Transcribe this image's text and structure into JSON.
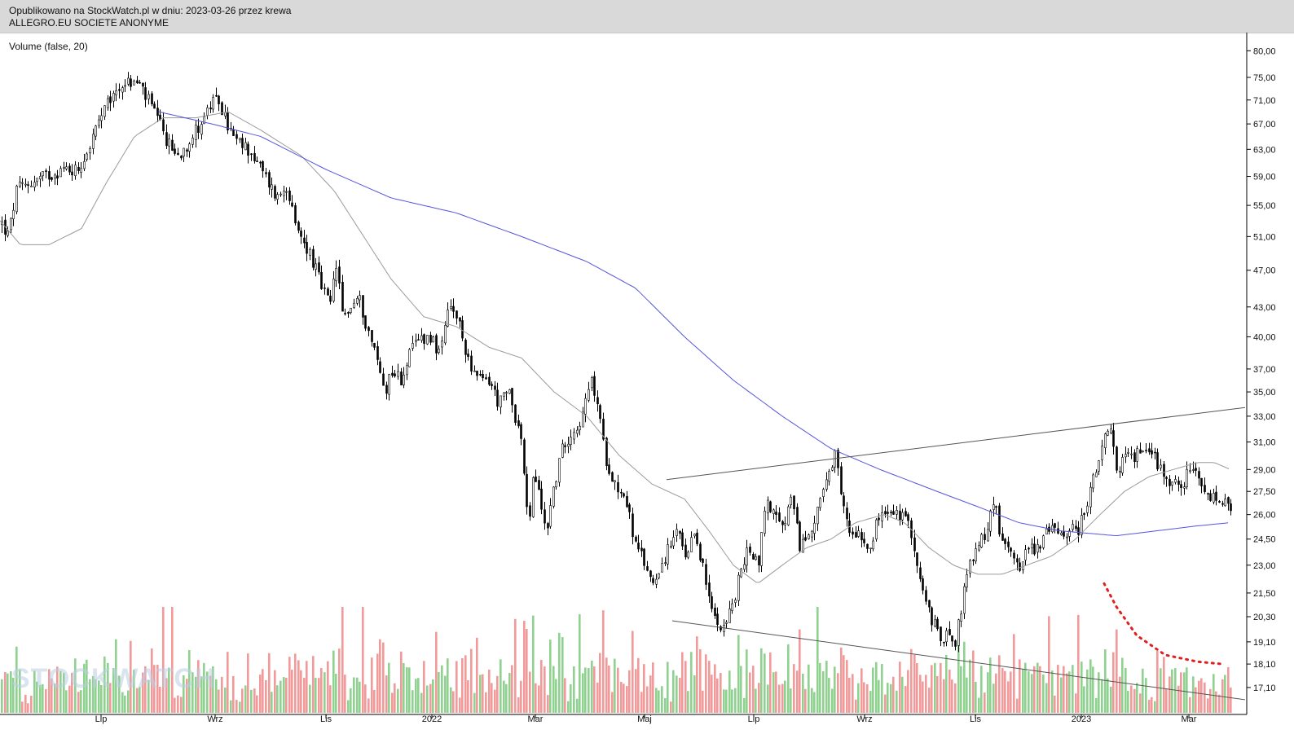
{
  "header": {
    "published": "Opublikowano na StockWatch.pl w dniu: 2023-03-26 przez krewa",
    "instrument": "ALLEGRO.EU SOCIETE ANONYME"
  },
  "indicator_label": "Volume (false, 20)",
  "watermark": "STOCKWATCH",
  "colors": {
    "candle": "#000000",
    "ma_short": "#9a9a9a",
    "ma_long": "#5555dd",
    "volume_up": "#8fd18f",
    "volume_down": "#f29a9a",
    "trendline": "#555555",
    "annotation": "#e02020"
  },
  "chart_data": {
    "type": "candlestick",
    "title": "ALLEGRO.EU SOCIETE ANONYME",
    "y_scale": "log",
    "ylim": [
      16.5,
      81
    ],
    "y_ticks": [
      "80,00",
      "75,00",
      "71,00",
      "67,00",
      "63,00",
      "59,00",
      "55,00",
      "51,00",
      "47,00",
      "43,00",
      "40,00",
      "37,00",
      "35,00",
      "33,00",
      "31,00",
      "29,00",
      "27,50",
      "26,00",
      "24,50",
      "23,00",
      "21,50",
      "20,30",
      "19,10",
      "18,10",
      "17,10"
    ],
    "x_ticks": [
      "Lip",
      "Wrz",
      "Lis",
      "2022",
      "Mar",
      "Maj",
      "Lip",
      "Wrz",
      "Lis",
      "2023",
      "Mar"
    ],
    "price_anchors": [
      [
        0,
        53
      ],
      [
        10,
        51
      ],
      [
        20,
        57
      ],
      [
        35,
        58
      ],
      [
        55,
        59
      ],
      [
        75,
        60
      ],
      [
        95,
        60
      ],
      [
        108,
        63
      ],
      [
        120,
        67
      ],
      [
        135,
        71
      ],
      [
        150,
        74
      ],
      [
        170,
        74
      ],
      [
        185,
        70
      ],
      [
        195,
        67
      ],
      [
        205,
        64
      ],
      [
        218,
        62
      ],
      [
        230,
        64
      ],
      [
        245,
        67
      ],
      [
        258,
        70
      ],
      [
        268,
        71
      ],
      [
        278,
        67
      ],
      [
        290,
        64
      ],
      [
        305,
        63
      ],
      [
        320,
        60
      ],
      [
        340,
        56
      ],
      [
        352,
        58
      ],
      [
        362,
        52
      ],
      [
        380,
        49
      ],
      [
        395,
        45
      ],
      [
        405,
        43
      ],
      [
        412,
        48
      ],
      [
        420,
        42
      ],
      [
        440,
        44
      ],
      [
        450,
        41
      ],
      [
        462,
        38
      ],
      [
        472,
        35
      ],
      [
        480,
        37
      ],
      [
        492,
        36
      ],
      [
        500,
        38
      ],
      [
        515,
        40
      ],
      [
        530,
        40
      ],
      [
        540,
        38
      ],
      [
        550,
        43
      ],
      [
        560,
        42
      ],
      [
        570,
        39
      ],
      [
        585,
        36
      ],
      [
        600,
        36
      ],
      [
        612,
        34
      ],
      [
        625,
        35
      ],
      [
        640,
        31
      ],
      [
        648,
        25
      ],
      [
        655,
        29
      ],
      [
        662,
        27
      ],
      [
        670,
        25
      ],
      [
        680,
        28
      ],
      [
        692,
        31
      ],
      [
        705,
        32
      ],
      [
        715,
        33
      ],
      [
        725,
        36
      ],
      [
        733,
        34
      ],
      [
        742,
        30
      ],
      [
        755,
        28
      ],
      [
        768,
        27
      ],
      [
        780,
        24
      ],
      [
        792,
        23
      ],
      [
        800,
        22
      ],
      [
        810,
        23
      ],
      [
        822,
        24
      ],
      [
        832,
        25
      ],
      [
        842,
        23
      ],
      [
        852,
        25
      ],
      [
        862,
        23
      ],
      [
        870,
        21
      ],
      [
        880,
        20
      ],
      [
        890,
        20
      ],
      [
        900,
        21
      ],
      [
        910,
        23
      ],
      [
        920,
        24
      ],
      [
        930,
        23
      ],
      [
        940,
        27
      ],
      [
        950,
        26
      ],
      [
        960,
        25
      ],
      [
        970,
        27
      ],
      [
        982,
        24
      ],
      [
        995,
        25
      ],
      [
        1005,
        27
      ],
      [
        1015,
        28
      ],
      [
        1025,
        30
      ],
      [
        1032,
        27
      ],
      [
        1042,
        25
      ],
      [
        1055,
        25
      ],
      [
        1065,
        24
      ],
      [
        1080,
        26
      ],
      [
        1092,
        26
      ],
      [
        1105,
        26
      ],
      [
        1118,
        25
      ],
      [
        1125,
        23
      ],
      [
        1135,
        21
      ],
      [
        1145,
        20
      ],
      [
        1155,
        19
      ],
      [
        1162,
        20
      ],
      [
        1172,
        19
      ],
      [
        1180,
        21
      ],
      [
        1190,
        23
      ],
      [
        1200,
        24
      ],
      [
        1210,
        25
      ],
      [
        1220,
        27
      ],
      [
        1230,
        24
      ],
      [
        1240,
        24
      ],
      [
        1252,
        23
      ],
      [
        1262,
        24
      ],
      [
        1272,
        24
      ],
      [
        1285,
        25
      ],
      [
        1298,
        25
      ],
      [
        1310,
        25
      ],
      [
        1322,
        25
      ],
      [
        1335,
        27
      ],
      [
        1345,
        29
      ],
      [
        1355,
        31
      ],
      [
        1362,
        32
      ],
      [
        1370,
        29
      ],
      [
        1382,
        30
      ],
      [
        1395,
        30
      ],
      [
        1405,
        31
      ],
      [
        1415,
        30
      ],
      [
        1425,
        29
      ],
      [
        1438,
        28
      ],
      [
        1450,
        28
      ],
      [
        1462,
        29
      ],
      [
        1472,
        28
      ],
      [
        1482,
        27
      ],
      [
        1495,
        27
      ],
      [
        1505,
        26.5
      ],
      [
        1512,
        26
      ]
    ],
    "series": [
      {
        "kind": "moving_average_short",
        "anchors": [
          [
            0,
            53
          ],
          [
            25,
            50
          ],
          [
            60,
            50
          ],
          [
            100,
            52
          ],
          [
            130,
            58
          ],
          [
            165,
            65
          ],
          [
            200,
            68
          ],
          [
            240,
            68
          ],
          [
            280,
            69
          ],
          [
            320,
            66
          ],
          [
            370,
            62
          ],
          [
            410,
            57
          ],
          [
            440,
            52
          ],
          [
            480,
            46
          ],
          [
            520,
            42
          ],
          [
            560,
            41
          ],
          [
            600,
            39
          ],
          [
            640,
            38
          ],
          [
            680,
            35
          ],
          [
            720,
            33
          ],
          [
            760,
            30
          ],
          [
            800,
            28
          ],
          [
            840,
            27
          ],
          [
            870,
            25
          ],
          [
            900,
            23
          ],
          [
            930,
            22
          ],
          [
            960,
            23
          ],
          [
            990,
            24
          ],
          [
            1020,
            24.5
          ],
          [
            1050,
            25.5
          ],
          [
            1085,
            26
          ],
          [
            1110,
            25.5
          ],
          [
            1140,
            24
          ],
          [
            1170,
            23
          ],
          [
            1200,
            22.5
          ],
          [
            1230,
            22.5
          ],
          [
            1260,
            23
          ],
          [
            1290,
            23.5
          ],
          [
            1320,
            24.5
          ],
          [
            1350,
            26
          ],
          [
            1380,
            27.5
          ],
          [
            1410,
            28.5
          ],
          [
            1440,
            29
          ],
          [
            1470,
            29.5
          ],
          [
            1490,
            29.5
          ],
          [
            1510,
            29
          ]
        ]
      },
      {
        "kind": "moving_average_long",
        "anchors": [
          [
            195,
            69
          ],
          [
            260,
            67
          ],
          [
            320,
            65
          ],
          [
            400,
            60
          ],
          [
            480,
            56
          ],
          [
            560,
            54
          ],
          [
            640,
            51
          ],
          [
            720,
            48
          ],
          [
            780,
            45
          ],
          [
            840,
            40
          ],
          [
            900,
            36
          ],
          [
            960,
            33
          ],
          [
            1020,
            30.5
          ],
          [
            1080,
            29
          ],
          [
            1150,
            27.5
          ],
          [
            1200,
            26.5
          ],
          [
            1250,
            25.5
          ],
          [
            1300,
            25
          ],
          [
            1370,
            24.7
          ],
          [
            1420,
            25
          ],
          [
            1470,
            25.3
          ],
          [
            1510,
            25.5
          ]
        ]
      }
    ],
    "annotations": [
      {
        "kind": "upper_trendline",
        "from": [
          818,
          28.3
        ],
        "to": [
          1528,
          33.7
        ]
      },
      {
        "kind": "lower_trendline",
        "from": [
          825,
          20.1
        ],
        "to": [
          1528,
          16.6
        ]
      },
      {
        "kind": "dotted_curve",
        "points": [
          [
            1355,
            22
          ],
          [
            1370,
            20.8
          ],
          [
            1395,
            19.4
          ],
          [
            1430,
            18.5
          ],
          [
            1470,
            18.2
          ],
          [
            1500,
            18.1
          ]
        ]
      }
    ]
  }
}
